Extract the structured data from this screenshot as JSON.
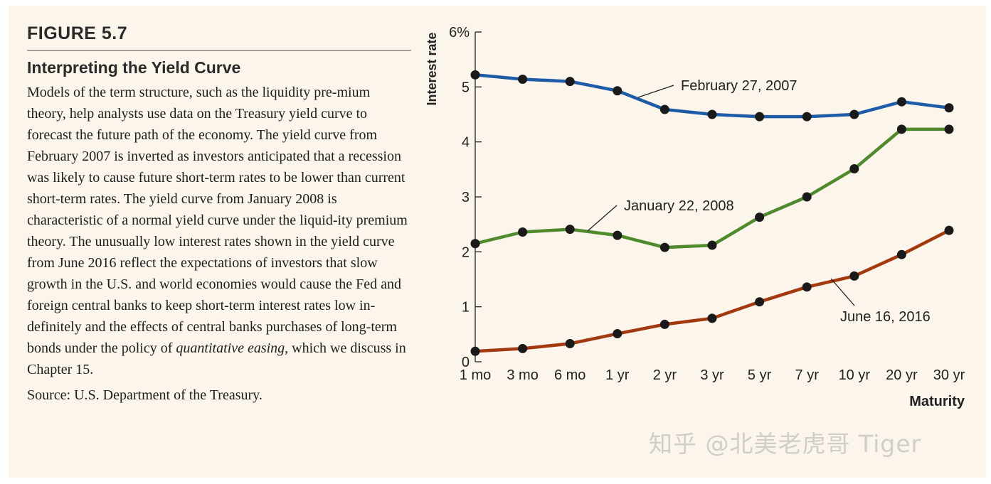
{
  "figure": {
    "label": "FIGURE 5.7",
    "title": "Interpreting the Yield Curve",
    "body_before": "Models of the term structure, such as the liquidity pre-mium theory, help analysts use data on the Treasury yield curve to forecast the future path of the economy. The yield curve from February 2007 is inverted as investors anticipated that a recession was likely to cause future short-term rates to be lower than current short-term rates. The yield curve from January 2008 is characteristic of a normal yield curve under the liquid-ity premium theory. The unusually low interest rates shown in the  yield curve from June 2016 reflect the expectations of investors that slow growth in the U.S. and world economies would cause the Fed and foreign central banks to keep short-term interest rates low in-definitely and the effects of central banks purchases of long-term bonds under the policy of ",
    "body_emphasis": "quantitative easing,",
    "body_after": " which we discuss in Chapter 15.",
    "source": "Source: U.S. Department of the Treasury."
  },
  "watermark": "知乎 @北美老虎哥 Tiger",
  "chart_data": {
    "type": "line",
    "title": "",
    "xlabel": "Maturity",
    "ylabel": "Interest rate",
    "categories": [
      "1 mo",
      "3 mo",
      "6 mo",
      "1 yr",
      "2 yr",
      "3 yr",
      "5 yr",
      "7 yr",
      "10 yr",
      "20 yr",
      "30 yr"
    ],
    "ylim": [
      0,
      6
    ],
    "yticks": [
      0,
      1,
      2,
      3,
      4,
      5,
      6
    ],
    "ytick_labels": [
      "0",
      "1",
      "2",
      "3",
      "4",
      "5",
      "6%"
    ],
    "grid": false,
    "series": [
      {
        "name": "February 27, 2007",
        "color": "#1f5ca8",
        "values": [
          5.22,
          5.14,
          5.1,
          4.93,
          4.59,
          4.5,
          4.46,
          4.46,
          4.5,
          4.73,
          4.62
        ]
      },
      {
        "name": "January 22, 2008",
        "color": "#4f8a2c",
        "values": [
          2.15,
          2.36,
          2.41,
          2.3,
          2.08,
          2.12,
          2.63,
          3.0,
          3.51,
          4.23,
          4.23
        ]
      },
      {
        "name": "June 16, 2016",
        "color": "#a2390f",
        "values": [
          0.19,
          0.24,
          0.33,
          0.51,
          0.68,
          0.79,
          1.09,
          1.36,
          1.56,
          1.95,
          2.39
        ]
      }
    ]
  }
}
